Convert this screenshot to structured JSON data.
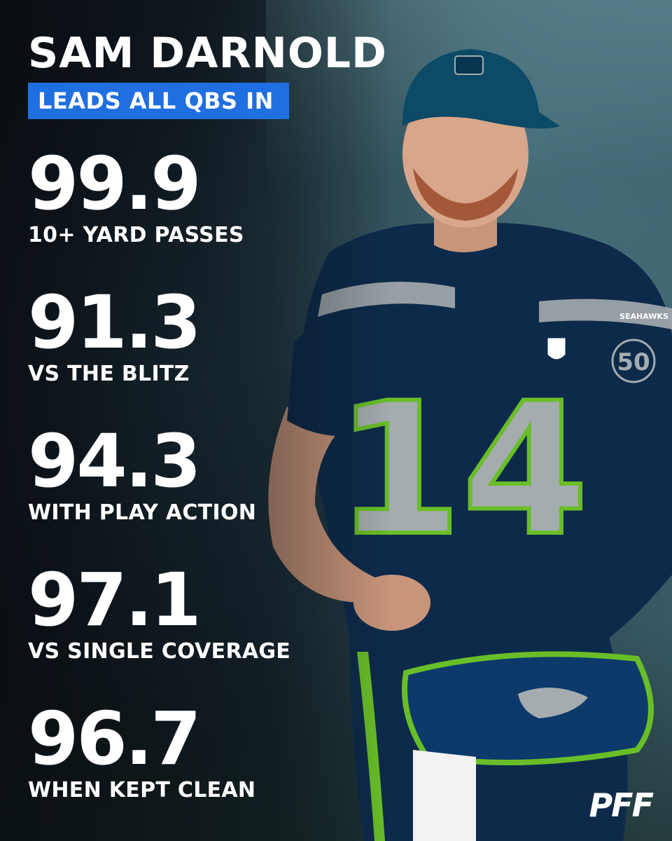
{
  "header": {
    "title": "SAM DARNOLD",
    "subtitle": "LEADS ALL QBS IN"
  },
  "stats": [
    {
      "value": "99.9",
      "label": "10+ YARD PASSES"
    },
    {
      "value": "91.3",
      "label": "VS THE BLITZ"
    },
    {
      "value": "94.3",
      "label": "WITH PLAY ACTION"
    },
    {
      "value": "97.1",
      "label": "VS SINGLE COVERAGE"
    },
    {
      "value": "96.7",
      "label": "WHEN KEPT CLEAN"
    }
  ],
  "photo": {
    "jersey_number": "14",
    "jersey_wordmark": "SEAHAWKS",
    "patch_text": "50",
    "colors": {
      "navy": "#0d2a4a",
      "action_green": "#69be28",
      "wolf_grey": "#a5acaf",
      "accent_blue": "#1f6fe0"
    }
  },
  "brand": {
    "logo_text": "PFF"
  }
}
